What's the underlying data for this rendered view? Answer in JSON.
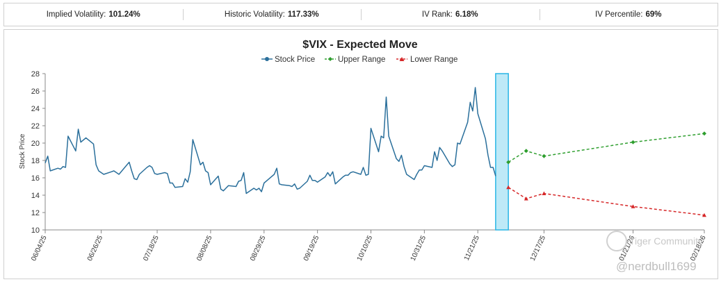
{
  "stats": [
    {
      "label": "Implied Volatility:",
      "value": "101.24%"
    },
    {
      "label": "Historic Volatility:",
      "value": "117.33%"
    },
    {
      "label": "IV Rank:",
      "value": "6.18%"
    },
    {
      "label": "IV Percentile:",
      "value": "69%"
    }
  ],
  "watermark": {
    "brand": "Tiger Community",
    "user": "@nerdbull1699"
  },
  "chart_data": {
    "type": "line",
    "title": "$VIX - Expected Move",
    "ylabel": "Stock Price",
    "ylim": [
      10,
      28
    ],
    "yticks": [
      10,
      12,
      14,
      16,
      18,
      20,
      22,
      24,
      26,
      28
    ],
    "xlim": [
      "2025-06-04",
      "2026-02-18"
    ],
    "xticks": [
      "06/04/25",
      "06/26/25",
      "07/18/25",
      "08/08/25",
      "08/29/25",
      "09/19/25",
      "10/10/25",
      "10/31/25",
      "11/21/25",
      "12/17/25",
      "01/21/26",
      "02/18/26"
    ],
    "legend_position": "top-center",
    "highlight_band": {
      "from": "2025-11-28",
      "to": "2025-12-03",
      "color": "#29b6e6"
    },
    "colors": {
      "stock": "#2a6f9b",
      "upper": "#2e9e2e",
      "lower": "#d62728"
    },
    "series": [
      {
        "name": "Stock Price",
        "style": "solid",
        "marker": "circle",
        "points": [
          [
            "2025-06-04",
            17.7
          ],
          [
            "2025-06-05",
            18.5
          ],
          [
            "2025-06-06",
            16.8
          ],
          [
            "2025-06-09",
            17.1
          ],
          [
            "2025-06-10",
            17.0
          ],
          [
            "2025-06-11",
            17.3
          ],
          [
            "2025-06-12",
            17.2
          ],
          [
            "2025-06-13",
            20.8
          ],
          [
            "2025-06-16",
            19.1
          ],
          [
            "2025-06-17",
            21.6
          ],
          [
            "2025-06-18",
            20.1
          ],
          [
            "2025-06-20",
            20.6
          ],
          [
            "2025-06-23",
            19.9
          ],
          [
            "2025-06-24",
            17.5
          ],
          [
            "2025-06-25",
            16.8
          ],
          [
            "2025-06-26",
            16.6
          ],
          [
            "2025-06-27",
            16.4
          ],
          [
            "2025-06-30",
            16.7
          ],
          [
            "2025-07-01",
            16.8
          ],
          [
            "2025-07-03",
            16.4
          ],
          [
            "2025-07-07",
            17.8
          ],
          [
            "2025-07-08",
            16.8
          ],
          [
            "2025-07-09",
            15.9
          ],
          [
            "2025-07-10",
            15.8
          ],
          [
            "2025-07-11",
            16.4
          ],
          [
            "2025-07-14",
            17.2
          ],
          [
            "2025-07-15",
            17.4
          ],
          [
            "2025-07-16",
            17.2
          ],
          [
            "2025-07-17",
            16.5
          ],
          [
            "2025-07-18",
            16.4
          ],
          [
            "2025-07-21",
            16.6
          ],
          [
            "2025-07-22",
            16.5
          ],
          [
            "2025-07-23",
            15.4
          ],
          [
            "2025-07-24",
            15.4
          ],
          [
            "2025-07-25",
            14.9
          ],
          [
            "2025-07-28",
            15.0
          ],
          [
            "2025-07-29",
            15.9
          ],
          [
            "2025-07-30",
            15.5
          ],
          [
            "2025-07-31",
            16.7
          ],
          [
            "2025-08-01",
            20.4
          ],
          [
            "2025-08-04",
            17.5
          ],
          [
            "2025-08-05",
            17.8
          ],
          [
            "2025-08-06",
            16.8
          ],
          [
            "2025-08-07",
            16.6
          ],
          [
            "2025-08-08",
            15.2
          ],
          [
            "2025-08-11",
            16.2
          ],
          [
            "2025-08-12",
            14.7
          ],
          [
            "2025-08-13",
            14.5
          ],
          [
            "2025-08-14",
            14.8
          ],
          [
            "2025-08-15",
            15.1
          ],
          [
            "2025-08-18",
            15.0
          ],
          [
            "2025-08-19",
            15.6
          ],
          [
            "2025-08-20",
            15.7
          ],
          [
            "2025-08-21",
            16.6
          ],
          [
            "2025-08-22",
            14.2
          ],
          [
            "2025-08-25",
            14.8
          ],
          [
            "2025-08-26",
            14.6
          ],
          [
            "2025-08-27",
            14.8
          ],
          [
            "2025-08-28",
            14.4
          ],
          [
            "2025-08-29",
            15.4
          ],
          [
            "2025-09-02",
            16.4
          ],
          [
            "2025-09-03",
            17.1
          ],
          [
            "2025-09-04",
            15.3
          ],
          [
            "2025-09-05",
            15.2
          ],
          [
            "2025-09-08",
            15.1
          ],
          [
            "2025-09-09",
            15.0
          ],
          [
            "2025-09-10",
            15.3
          ],
          [
            "2025-09-11",
            14.7
          ],
          [
            "2025-09-12",
            14.8
          ],
          [
            "2025-09-15",
            15.6
          ],
          [
            "2025-09-16",
            16.3
          ],
          [
            "2025-09-17",
            15.7
          ],
          [
            "2025-09-18",
            15.7
          ],
          [
            "2025-09-19",
            15.5
          ],
          [
            "2025-09-22",
            16.1
          ],
          [
            "2025-09-23",
            16.6
          ],
          [
            "2025-09-24",
            16.2
          ],
          [
            "2025-09-25",
            16.7
          ],
          [
            "2025-09-26",
            15.3
          ],
          [
            "2025-09-29",
            16.1
          ],
          [
            "2025-09-30",
            16.3
          ],
          [
            "2025-10-01",
            16.3
          ],
          [
            "2025-10-02",
            16.6
          ],
          [
            "2025-10-03",
            16.7
          ],
          [
            "2025-10-06",
            16.4
          ],
          [
            "2025-10-07",
            17.2
          ],
          [
            "2025-10-08",
            16.3
          ],
          [
            "2025-10-09",
            16.4
          ],
          [
            "2025-10-10",
            21.7
          ],
          [
            "2025-10-13",
            19.0
          ],
          [
            "2025-10-14",
            20.8
          ],
          [
            "2025-10-15",
            20.6
          ],
          [
            "2025-10-16",
            25.3
          ],
          [
            "2025-10-17",
            20.8
          ],
          [
            "2025-10-20",
            18.2
          ],
          [
            "2025-10-21",
            17.9
          ],
          [
            "2025-10-22",
            18.6
          ],
          [
            "2025-10-23",
            17.3
          ],
          [
            "2025-10-24",
            16.4
          ],
          [
            "2025-10-27",
            15.8
          ],
          [
            "2025-10-28",
            16.4
          ],
          [
            "2025-10-29",
            16.9
          ],
          [
            "2025-10-30",
            16.9
          ],
          [
            "2025-10-31",
            17.4
          ],
          [
            "2025-11-03",
            17.2
          ],
          [
            "2025-11-04",
            19.0
          ],
          [
            "2025-11-05",
            18.0
          ],
          [
            "2025-11-06",
            19.5
          ],
          [
            "2025-11-07",
            19.1
          ],
          [
            "2025-11-10",
            17.6
          ],
          [
            "2025-11-11",
            17.3
          ],
          [
            "2025-11-12",
            17.5
          ],
          [
            "2025-11-13",
            20.0
          ],
          [
            "2025-11-14",
            19.9
          ],
          [
            "2025-11-17",
            22.4
          ],
          [
            "2025-11-18",
            24.7
          ],
          [
            "2025-11-19",
            23.7
          ],
          [
            "2025-11-20",
            26.4
          ],
          [
            "2025-11-21",
            23.4
          ],
          [
            "2025-11-24",
            20.5
          ],
          [
            "2025-11-25",
            18.6
          ],
          [
            "2025-11-26",
            17.2
          ],
          [
            "2025-11-27",
            17.2
          ],
          [
            "2025-11-28",
            16.2
          ]
        ]
      },
      {
        "name": "Upper Range",
        "style": "dashed",
        "marker": "diamond",
        "points": [
          [
            "2025-12-03",
            17.8
          ],
          [
            "2025-12-10",
            19.1
          ],
          [
            "2025-12-17",
            18.5
          ],
          [
            "2026-01-21",
            20.1
          ],
          [
            "2026-02-18",
            21.1
          ]
        ]
      },
      {
        "name": "Lower Range",
        "style": "dashed",
        "marker": "triangle",
        "points": [
          [
            "2025-12-03",
            14.9
          ],
          [
            "2025-12-10",
            13.6
          ],
          [
            "2025-12-17",
            14.2
          ],
          [
            "2026-01-21",
            12.7
          ],
          [
            "2026-02-18",
            11.7
          ]
        ]
      }
    ]
  }
}
